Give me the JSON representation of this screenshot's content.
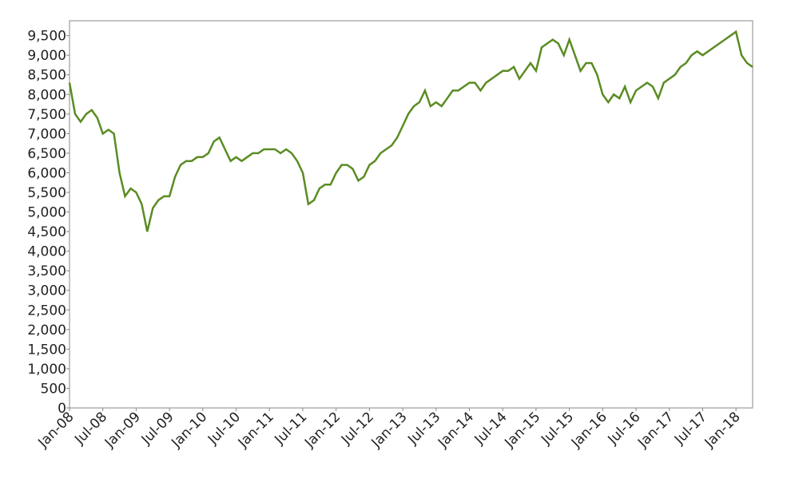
{
  "chart_data": {
    "type": "line",
    "x": [
      "2008-01",
      "2008-02",
      "2008-03",
      "2008-04",
      "2008-05",
      "2008-06",
      "2008-07",
      "2008-08",
      "2008-09",
      "2008-10",
      "2008-11",
      "2008-12",
      "2009-01",
      "2009-02",
      "2009-03",
      "2009-04",
      "2009-05",
      "2009-06",
      "2009-07",
      "2009-08",
      "2009-09",
      "2009-10",
      "2009-11",
      "2009-12",
      "2010-01",
      "2010-02",
      "2010-03",
      "2010-04",
      "2010-05",
      "2010-06",
      "2010-07",
      "2010-08",
      "2010-09",
      "2010-10",
      "2010-11",
      "2010-12",
      "2011-01",
      "2011-02",
      "2011-03",
      "2011-04",
      "2011-05",
      "2011-06",
      "2011-07",
      "2011-08",
      "2011-09",
      "2011-10",
      "2011-11",
      "2011-12",
      "2012-01",
      "2012-02",
      "2012-03",
      "2012-04",
      "2012-05",
      "2012-06",
      "2012-07",
      "2012-08",
      "2012-09",
      "2012-10",
      "2012-11",
      "2012-12",
      "2013-01",
      "2013-02",
      "2013-03",
      "2013-04",
      "2013-05",
      "2013-06",
      "2013-07",
      "2013-08",
      "2013-09",
      "2013-10",
      "2013-11",
      "2013-12",
      "2014-01",
      "2014-02",
      "2014-03",
      "2014-04",
      "2014-05",
      "2014-06",
      "2014-07",
      "2014-08",
      "2014-09",
      "2014-10",
      "2014-11",
      "2014-12",
      "2015-01",
      "2015-02",
      "2015-03",
      "2015-04",
      "2015-05",
      "2015-06",
      "2015-07",
      "2015-08",
      "2015-09",
      "2015-10",
      "2015-11",
      "2015-12",
      "2016-01",
      "2016-02",
      "2016-03",
      "2016-04",
      "2016-05",
      "2016-06",
      "2016-07",
      "2016-08",
      "2016-09",
      "2016-10",
      "2016-11",
      "2016-12",
      "2017-01",
      "2017-02",
      "2017-03",
      "2017-04",
      "2017-05",
      "2017-06",
      "2017-07",
      "2017-08",
      "2017-09",
      "2017-10",
      "2017-11",
      "2017-12",
      "2018-01",
      "2018-02",
      "2018-03",
      "2018-04"
    ],
    "series": [
      {
        "color": "#5a8c23",
        "values": [
          8300,
          7500,
          7300,
          7500,
          7600,
          7400,
          7000,
          7100,
          7000,
          6000,
          5400,
          5600,
          5500,
          5200,
          4500,
          5100,
          5300,
          5400,
          5400,
          5900,
          6200,
          6300,
          6300,
          6400,
          6400,
          6500,
          6800,
          6900,
          6600,
          6300,
          6400,
          6300,
          6400,
          6500,
          6500,
          6600,
          6600,
          6600,
          6500,
          6600,
          6500,
          6300,
          6000,
          5200,
          5300,
          5600,
          5700,
          5700,
          6000,
          6200,
          6200,
          6100,
          5800,
          5900,
          6200,
          6300,
          6500,
          6600,
          6700,
          6900,
          7200,
          7500,
          7700,
          7800,
          8100,
          7700,
          7800,
          7700,
          7900,
          8100,
          8100,
          8200,
          8300,
          8300,
          8100,
          8300,
          8400,
          8500,
          8600,
          8600,
          8700,
          8400,
          8600,
          8800,
          8600,
          9200,
          9300,
          9400,
          9300,
          9000,
          9400,
          9000,
          8600,
          8800,
          8800,
          8500,
          8000,
          7800,
          8000,
          7900,
          8200,
          7800,
          8100,
          8200,
          8300,
          8200,
          7900,
          8300,
          8400,
          8500,
          8700,
          8800,
          9000,
          9100,
          9000,
          9100,
          9200,
          9300,
          9400,
          9500,
          9600,
          9000,
          8800,
          8700
        ]
      }
    ],
    "xlim": [
      "2008-01",
      "2018-04"
    ],
    "xticks": [
      {
        "value": "2008-01",
        "label": "Jan-08"
      },
      {
        "value": "2008-07",
        "label": "Jul-08"
      },
      {
        "value": "2009-01",
        "label": "Jan-09"
      },
      {
        "value": "2009-07",
        "label": "Jul-09"
      },
      {
        "value": "2010-01",
        "label": "Jan-10"
      },
      {
        "value": "2010-07",
        "label": "Jul-10"
      },
      {
        "value": "2011-01",
        "label": "Jan-11"
      },
      {
        "value": "2011-07",
        "label": "Jul-11"
      },
      {
        "value": "2012-01",
        "label": "Jan-12"
      },
      {
        "value": "2012-07",
        "label": "Jul-12"
      },
      {
        "value": "2013-01",
        "label": "Jan-13"
      },
      {
        "value": "2013-07",
        "label": "Jul-13"
      },
      {
        "value": "2014-01",
        "label": "Jan-14"
      },
      {
        "value": "2014-07",
        "label": "Jul-14"
      },
      {
        "value": "2015-01",
        "label": "Jan-15"
      },
      {
        "value": "2015-07",
        "label": "Jul-15"
      },
      {
        "value": "2016-01",
        "label": "Jan-16"
      },
      {
        "value": "2016-07",
        "label": "Jul-16"
      },
      {
        "value": "2017-01",
        "label": "Jan-17"
      },
      {
        "value": "2017-07",
        "label": "Jul-17"
      },
      {
        "value": "2018-01",
        "label": "Jan-18"
      }
    ],
    "ylim": [
      0,
      9880
    ],
    "yticks": [
      0,
      500,
      {
        "value": 1000,
        "label": "1,000"
      },
      {
        "value": 1500,
        "label": "1,500"
      },
      {
        "value": 2000,
        "label": "2,000"
      },
      {
        "value": 2500,
        "label": "2,500"
      },
      {
        "value": 3000,
        "label": "3,000"
      },
      {
        "value": 3500,
        "label": "3,500"
      },
      {
        "value": 4000,
        "label": "4,000"
      },
      {
        "value": 4500,
        "label": "4,500"
      },
      {
        "value": 5000,
        "label": "5,000"
      },
      {
        "value": 5500,
        "label": "5,500"
      },
      {
        "value": 6000,
        "label": "6,000"
      },
      {
        "value": 6500,
        "label": "6,500"
      },
      {
        "value": 7000,
        "label": "7,000"
      },
      {
        "value": 7500,
        "label": "7,500"
      },
      {
        "value": 8000,
        "label": "8,000"
      },
      {
        "value": 8500,
        "label": "8,500"
      },
      {
        "value": 9000,
        "label": "9,000"
      },
      {
        "value": 9500,
        "label": "9,500"
      }
    ],
    "grid": false
  }
}
